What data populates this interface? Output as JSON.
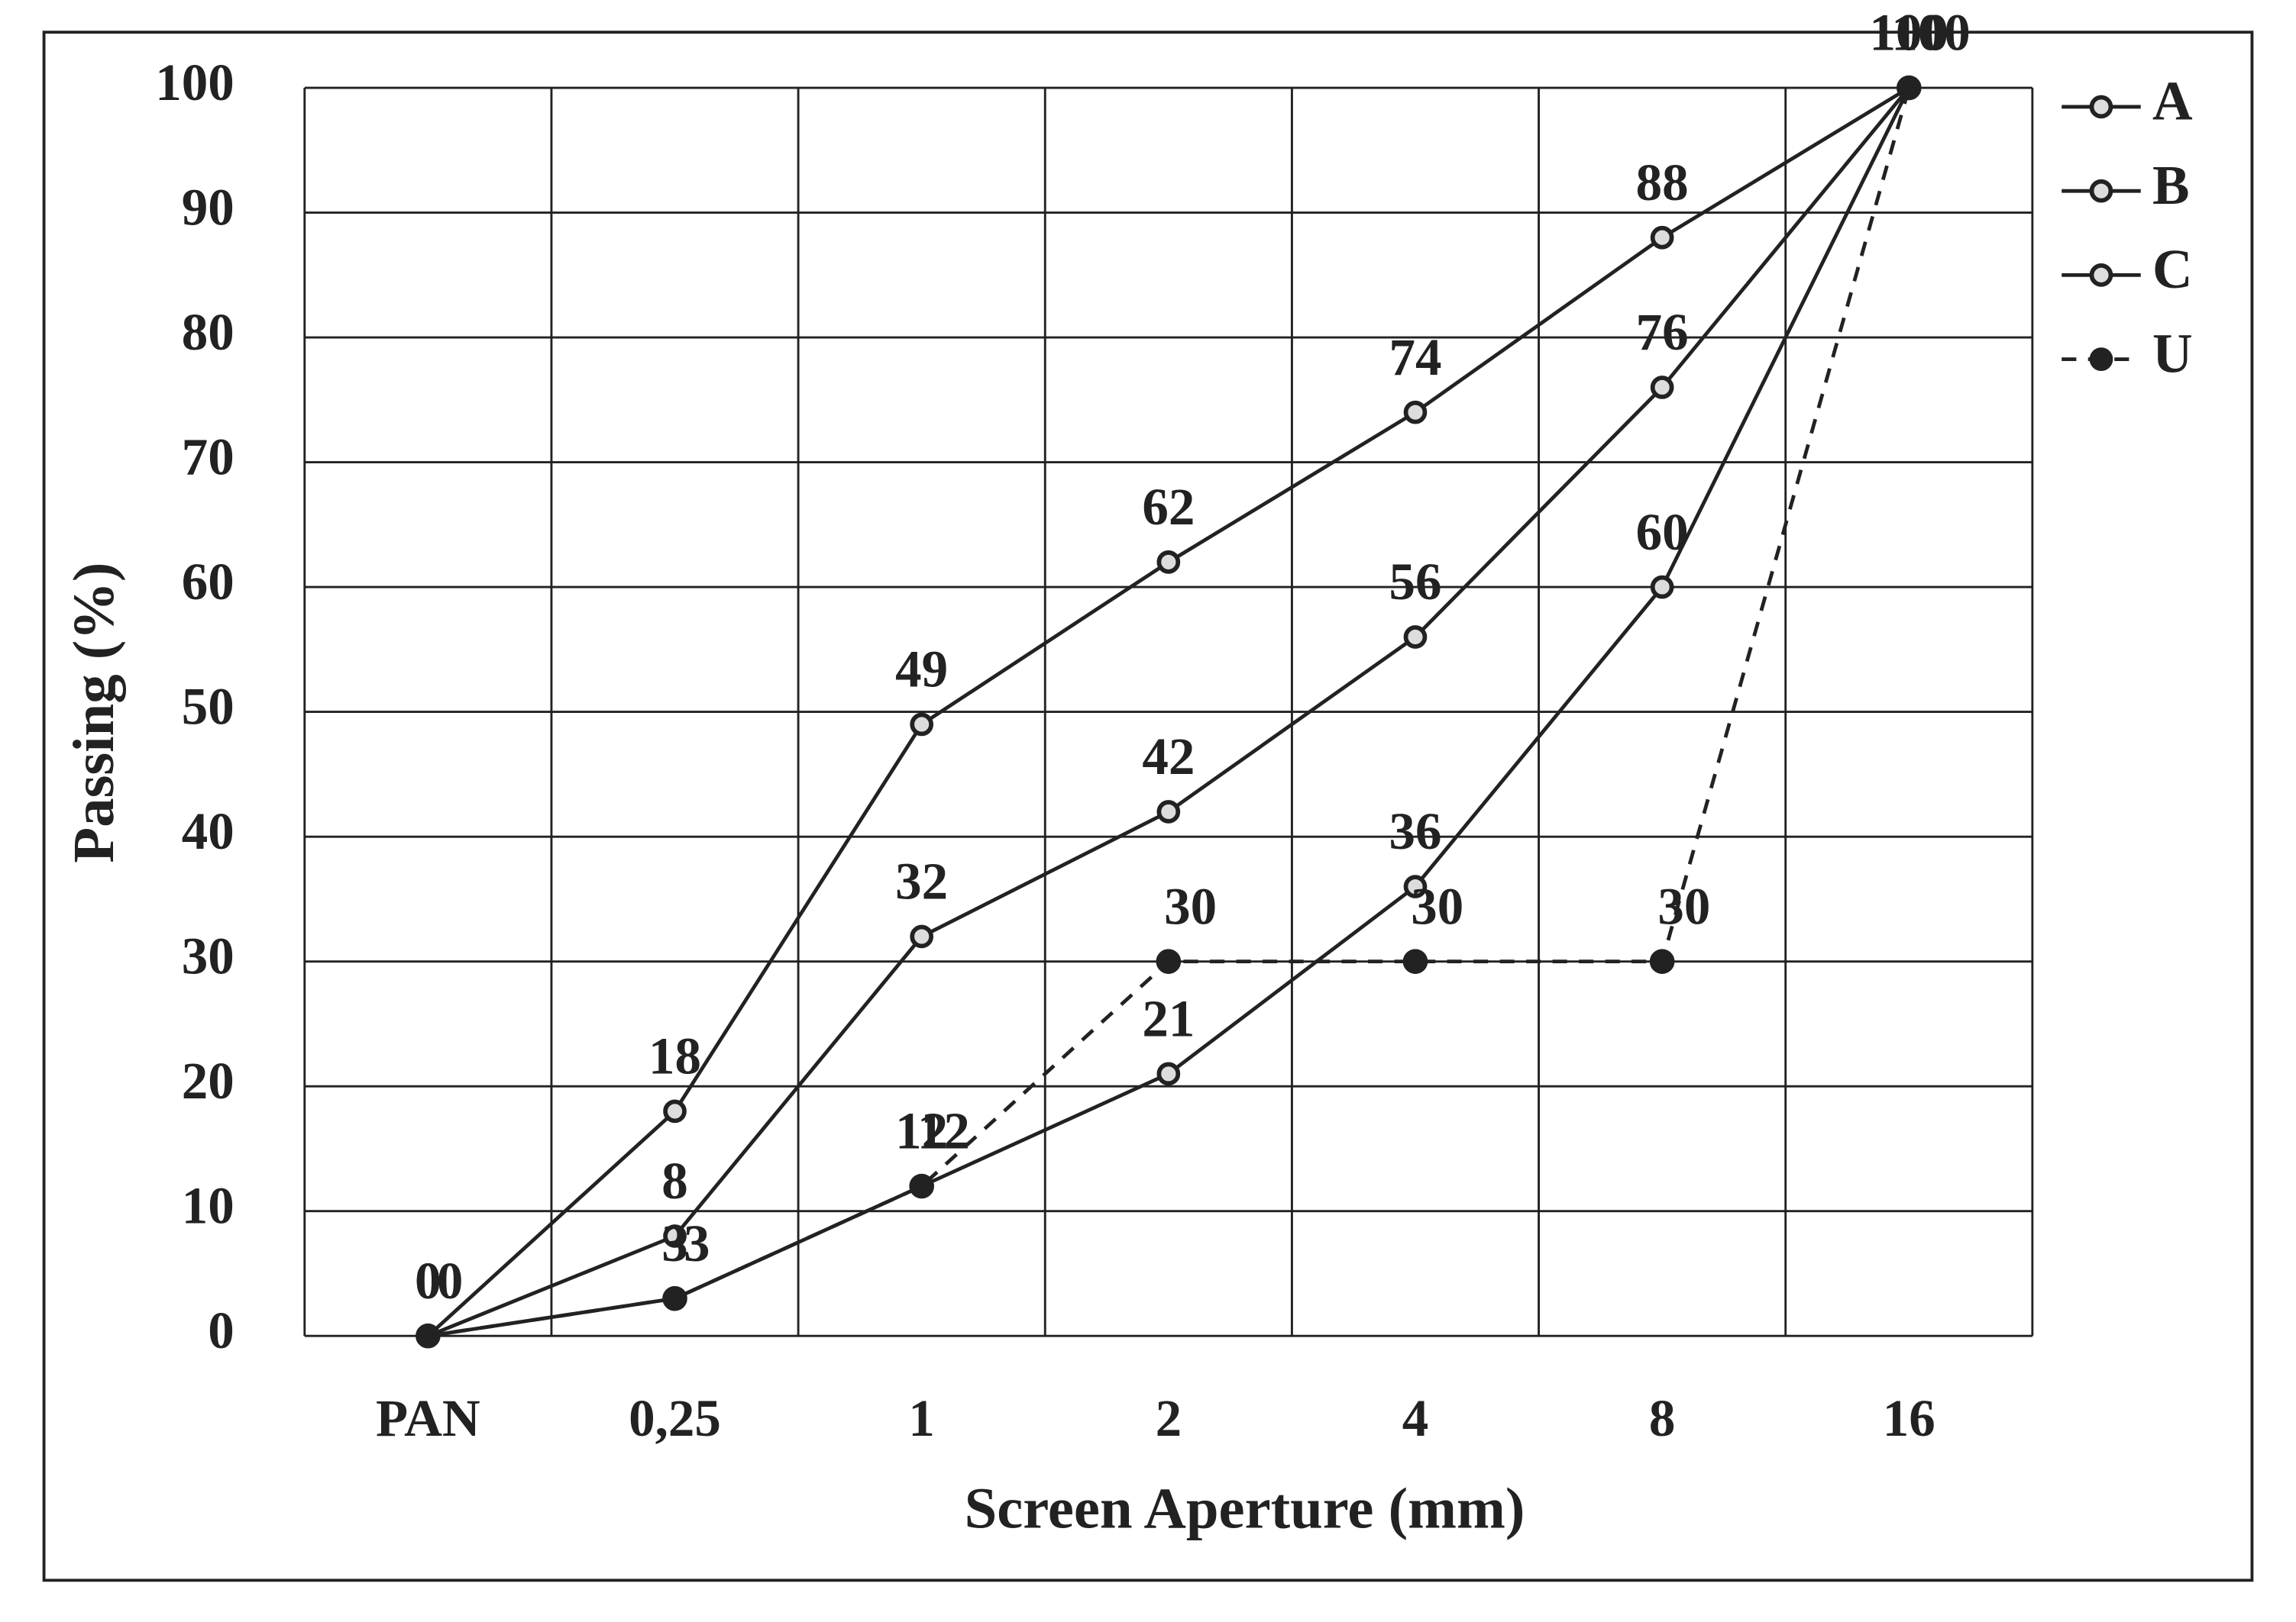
{
  "chart_data": {
    "type": "line",
    "x_label": "Screen Aperture (mm)",
    "y_label": "Passing (%)",
    "categories": [
      "PAN",
      "0,25",
      "1",
      "2",
      "4",
      "8",
      "16"
    ],
    "series": [
      {
        "name": "A",
        "color": "#222222",
        "dashed": false,
        "marker": "open",
        "values": [
          0,
          18,
          49,
          62,
          74,
          88,
          100
        ]
      },
      {
        "name": "B",
        "color": "#222222",
        "dashed": false,
        "marker": "open",
        "values": [
          0,
          8,
          32,
          42,
          56,
          76,
          100
        ]
      },
      {
        "name": "C",
        "color": "#222222",
        "dashed": false,
        "marker": "open",
        "values": [
          0,
          3,
          12,
          21,
          36,
          60,
          100
        ]
      },
      {
        "name": "U",
        "color": "#222222",
        "dashed": true,
        "marker": "filled",
        "values": [
          0,
          3,
          12,
          30,
          30,
          30,
          100
        ]
      }
    ],
    "ylim": [
      0,
      100
    ],
    "yticks": [
      0,
      10,
      20,
      30,
      40,
      50,
      60,
      70,
      80,
      90,
      100
    ],
    "grid": true,
    "legend": "right"
  }
}
